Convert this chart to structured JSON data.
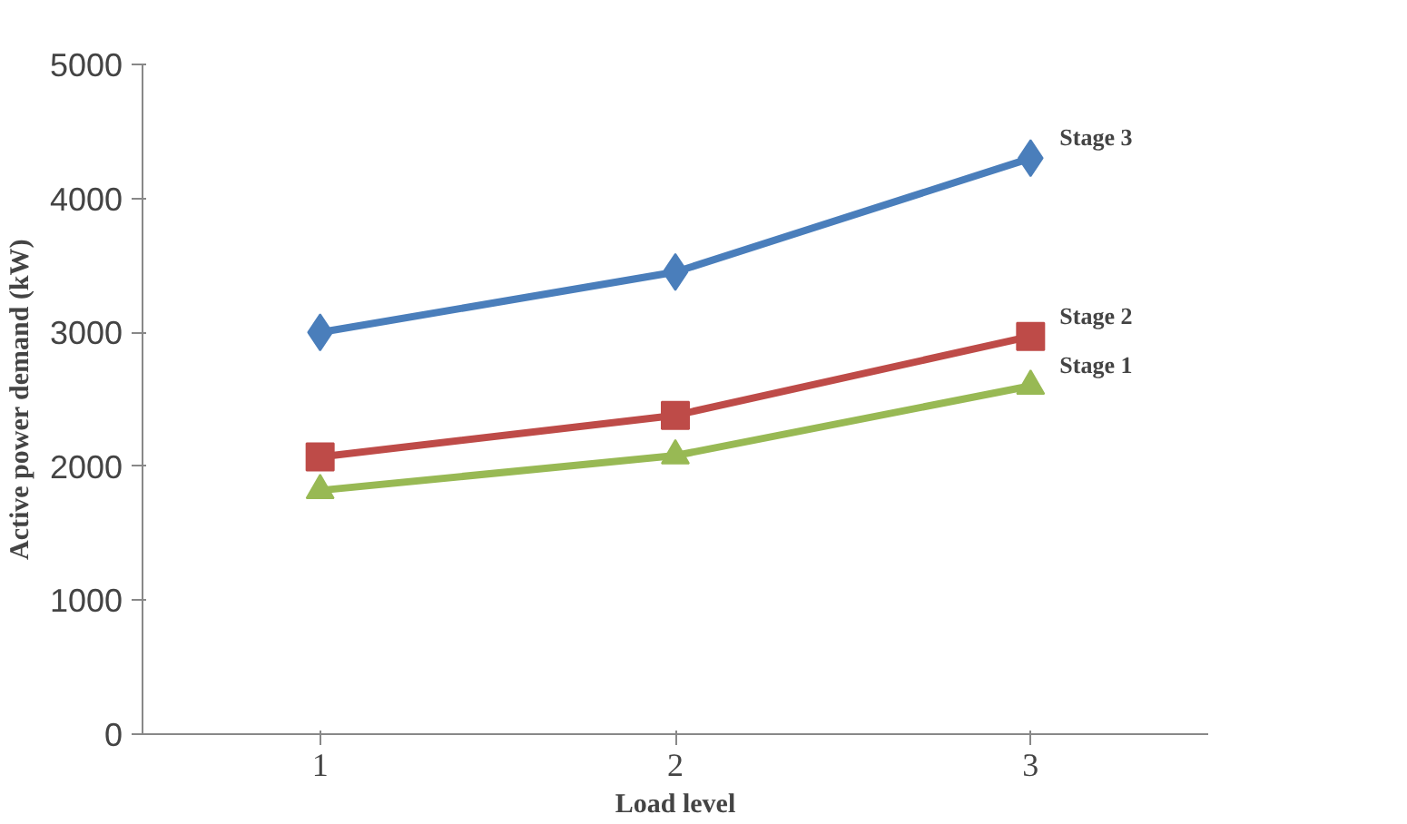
{
  "chart_data": {
    "type": "line",
    "xlabel": "Load level",
    "ylabel": "Active power demand (kW)",
    "categories": [
      "1",
      "2",
      "3"
    ],
    "series": [
      {
        "name": "Stage 3",
        "color": "#4a7ebb",
        "marker": "diamond",
        "values": [
          3000,
          3450,
          4300
        ]
      },
      {
        "name": "Stage 2",
        "color": "#be4b48",
        "marker": "square",
        "values": [
          2070,
          2380,
          2970
        ]
      },
      {
        "name": "Stage 1",
        "color": "#98b954",
        "marker": "triangle",
        "values": [
          1820,
          2080,
          2600
        ]
      }
    ],
    "ylim": [
      0,
      5000
    ],
    "yticks": [
      0,
      1000,
      2000,
      3000,
      4000,
      5000
    ],
    "grid": false
  }
}
